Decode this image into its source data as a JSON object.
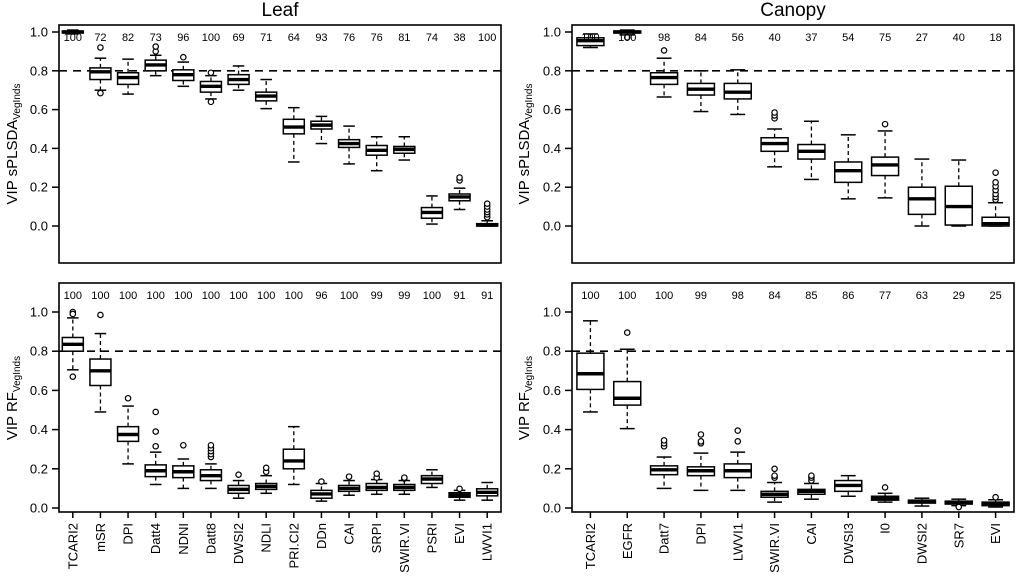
{
  "figure": {
    "background": "#ffffff",
    "ink_color": "#000000",
    "count_color": "#2e2e2e",
    "yticks": [
      "0.0",
      "0.2",
      "0.4",
      "0.6",
      "0.8",
      "1.0"
    ],
    "threshold_value": 0.8,
    "box_format": "[low_whisker, q1, median, q3, high_whisker, outliers[]]"
  },
  "chart_data": [
    {
      "type": "boxplot",
      "id": "leaf-splsda",
      "title": "Leaf",
      "ylabel": "VIP sPLSDA",
      "ylabel_sub": "VegInds",
      "ylim": [
        0,
        1.08
      ],
      "grid": false,
      "threshold": 0.8,
      "counts": [
        100,
        72,
        82,
        73,
        96,
        100,
        69,
        71,
        64,
        93,
        76,
        76,
        81,
        74,
        38,
        100
      ],
      "boxes": [
        [
          0.99,
          0.995,
          1.0,
          1.005,
          1.01,
          []
        ],
        [
          0.7,
          0.755,
          0.795,
          0.815,
          0.865,
          [
            0.92,
            0.685
          ]
        ],
        [
          0.68,
          0.73,
          0.765,
          0.79,
          0.86,
          []
        ],
        [
          0.775,
          0.8,
          0.83,
          0.855,
          0.88,
          [
            0.9,
            0.925
          ]
        ],
        [
          0.72,
          0.75,
          0.78,
          0.805,
          0.845,
          [
            0.87
          ]
        ],
        [
          0.655,
          0.69,
          0.72,
          0.745,
          0.775,
          [
            0.79,
            0.64
          ]
        ],
        [
          0.7,
          0.73,
          0.755,
          0.78,
          0.825,
          []
        ],
        [
          0.605,
          0.645,
          0.67,
          0.69,
          0.755,
          []
        ],
        [
          0.33,
          0.475,
          0.51,
          0.55,
          0.61,
          []
        ],
        [
          0.425,
          0.5,
          0.52,
          0.54,
          0.565,
          []
        ],
        [
          0.32,
          0.405,
          0.425,
          0.445,
          0.515,
          []
        ],
        [
          0.285,
          0.365,
          0.39,
          0.415,
          0.46,
          []
        ],
        [
          0.34,
          0.375,
          0.395,
          0.41,
          0.46,
          []
        ],
        [
          0.01,
          0.04,
          0.07,
          0.095,
          0.155,
          []
        ],
        [
          0.085,
          0.13,
          0.15,
          0.165,
          0.195,
          [
            0.235,
            0.25
          ]
        ],
        [
          0.0,
          0.0,
          0.005,
          0.012,
          0.027,
          [
            0.045,
            0.06,
            0.072,
            0.085,
            0.1,
            0.115
          ]
        ]
      ]
    },
    {
      "type": "boxplot",
      "id": "canopy-splsda",
      "title": "Canopy",
      "ylabel": "VIP sPLSDA",
      "ylabel_sub": "VegInds",
      "ylim": [
        0,
        1.08
      ],
      "grid": false,
      "threshold": 0.8,
      "counts": [
        100,
        100,
        98,
        84,
        56,
        40,
        37,
        54,
        75,
        27,
        40,
        18
      ],
      "boxes": [
        [
          0.92,
          0.93,
          0.955,
          0.97,
          0.99,
          []
        ],
        [
          0.985,
          0.995,
          1.0,
          1.005,
          1.01,
          [
            0.972
          ]
        ],
        [
          0.665,
          0.73,
          0.765,
          0.79,
          0.865,
          [
            0.905
          ]
        ],
        [
          0.59,
          0.675,
          0.705,
          0.735,
          0.8,
          []
        ],
        [
          0.575,
          0.655,
          0.69,
          0.735,
          0.805,
          []
        ],
        [
          0.305,
          0.385,
          0.425,
          0.455,
          0.5,
          [
            0.555,
            0.57,
            0.585
          ]
        ],
        [
          0.24,
          0.345,
          0.385,
          0.42,
          0.54,
          []
        ],
        [
          0.14,
          0.225,
          0.285,
          0.33,
          0.47,
          []
        ],
        [
          0.145,
          0.26,
          0.315,
          0.355,
          0.49,
          [
            0.525
          ]
        ],
        [
          0.0,
          0.06,
          0.14,
          0.2,
          0.345,
          []
        ],
        [
          0.0,
          0.005,
          0.1,
          0.205,
          0.34,
          []
        ],
        [
          0.0,
          0.0,
          0.012,
          0.045,
          0.12,
          [
            0.135,
            0.15,
            0.165,
            0.185,
            0.205,
            0.225,
            0.275
          ]
        ]
      ]
    },
    {
      "type": "boxplot",
      "id": "leaf-rf",
      "title": "",
      "ylabel": "VIP RF",
      "ylabel_sub": "VegInds",
      "ylim": [
        0,
        1.08
      ],
      "grid": false,
      "threshold": 0.8,
      "categories": [
        "TCARI2",
        "mSR",
        "DPI",
        "Datt4",
        "NDNI",
        "Datt8",
        "DWSI2",
        "NDLI",
        "PRI.CI2",
        "DDn",
        "CAI",
        "SRPI",
        "SWIR.VI",
        "PSRI",
        "EVI",
        "LWVI1"
      ],
      "counts": [
        100,
        100,
        100,
        100,
        100,
        100,
        100,
        100,
        100,
        96,
        100,
        99,
        99,
        100,
        91,
        91
      ],
      "boxes": [
        [
          0.705,
          0.8,
          0.835,
          0.87,
          0.97,
          [
            1.0,
            0.99,
            0.67
          ]
        ],
        [
          0.49,
          0.625,
          0.7,
          0.76,
          0.89,
          [
            0.985
          ]
        ],
        [
          0.225,
          0.34,
          0.375,
          0.415,
          0.52,
          [
            0.56
          ]
        ],
        [
          0.12,
          0.16,
          0.19,
          0.22,
          0.285,
          [
            0.315,
            0.39,
            0.49
          ]
        ],
        [
          0.1,
          0.155,
          0.185,
          0.215,
          0.25,
          [
            0.32
          ]
        ],
        [
          0.1,
          0.14,
          0.165,
          0.195,
          0.225,
          [
            0.26,
            0.275,
            0.29,
            0.305,
            0.32
          ]
        ],
        [
          0.05,
          0.075,
          0.095,
          0.115,
          0.14,
          [
            0.17
          ]
        ],
        [
          0.075,
          0.095,
          0.11,
          0.125,
          0.165,
          [
            0.185,
            0.205
          ]
        ],
        [
          0.12,
          0.2,
          0.24,
          0.3,
          0.415,
          []
        ],
        [
          0.035,
          0.05,
          0.072,
          0.09,
          0.125,
          [
            0.135
          ]
        ],
        [
          0.065,
          0.085,
          0.1,
          0.115,
          0.14,
          [
            0.16
          ]
        ],
        [
          0.07,
          0.09,
          0.105,
          0.125,
          0.145,
          [
            0.155,
            0.175
          ]
        ],
        [
          0.07,
          0.09,
          0.105,
          0.12,
          0.14,
          [
            0.15,
            0.155
          ]
        ],
        [
          0.105,
          0.125,
          0.148,
          0.165,
          0.195,
          []
        ],
        [
          0.04,
          0.055,
          0.065,
          0.078,
          0.09,
          [
            0.098
          ]
        ],
        [
          0.04,
          0.062,
          0.08,
          0.098,
          0.13,
          []
        ]
      ]
    },
    {
      "type": "boxplot",
      "id": "canopy-rf",
      "title": "",
      "ylabel": "VIP RF",
      "ylabel_sub": "VegInds",
      "ylim": [
        0,
        1.08
      ],
      "grid": false,
      "threshold": 0.8,
      "categories": [
        "TCARI2",
        "EGFR",
        "Datt7",
        "DPI",
        "LWVI1",
        "SWIR.VI",
        "CAI",
        "DWSI3",
        "I0",
        "DWSI2",
        "SR7",
        "EVI"
      ],
      "counts": [
        100,
        100,
        100,
        99,
        98,
        84,
        85,
        86,
        77,
        63,
        29,
        25
      ],
      "boxes": [
        [
          0.49,
          0.605,
          0.685,
          0.79,
          0.955,
          []
        ],
        [
          0.405,
          0.525,
          0.56,
          0.645,
          0.81,
          [
            0.895
          ]
        ],
        [
          0.1,
          0.17,
          0.195,
          0.215,
          0.26,
          [
            0.315,
            0.33,
            0.345
          ]
        ],
        [
          0.09,
          0.165,
          0.19,
          0.21,
          0.28,
          [
            0.33,
            0.34,
            0.375
          ]
        ],
        [
          0.09,
          0.155,
          0.19,
          0.225,
          0.285,
          [
            0.34,
            0.395
          ]
        ],
        [
          0.03,
          0.055,
          0.07,
          0.085,
          0.13,
          [
            0.155,
            0.165,
            0.2
          ]
        ],
        [
          0.045,
          0.07,
          0.085,
          0.095,
          0.125,
          [
            0.14,
            0.155,
            0.165
          ]
        ],
        [
          0.06,
          0.085,
          0.115,
          0.14,
          0.165,
          []
        ],
        [
          0.03,
          0.04,
          0.048,
          0.06,
          0.075,
          [
            0.105
          ]
        ],
        [
          0.01,
          0.025,
          0.032,
          0.04,
          0.05,
          []
        ],
        [
          0.012,
          0.02,
          0.027,
          0.035,
          0.045,
          [
            0.005
          ]
        ],
        [
          0.005,
          0.012,
          0.02,
          0.03,
          0.042,
          [
            0.055
          ]
        ]
      ]
    }
  ]
}
